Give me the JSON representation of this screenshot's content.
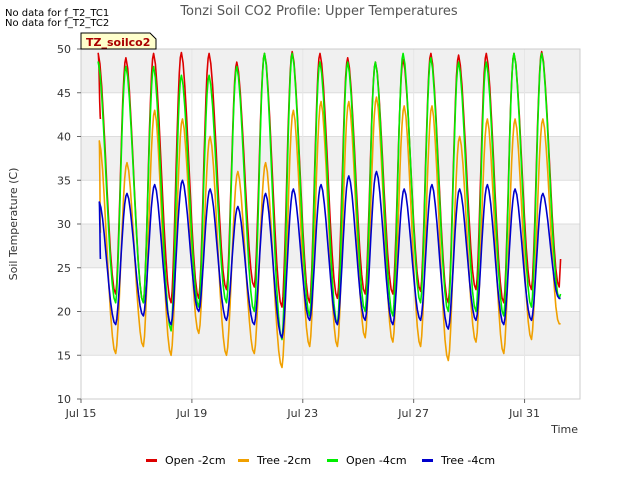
{
  "chart_data": {
    "type": "line",
    "title": "Tonzi Soil CO2 Profile: Upper Temperatures",
    "xlabel": "Time",
    "ylabel": "Soil Temperature (C)",
    "ylim": [
      10,
      50
    ],
    "yticks": [
      10,
      15,
      20,
      25,
      30,
      35,
      40,
      45,
      50
    ],
    "xlim": [
      15,
      33
    ],
    "xticks": [
      {
        "value": 15,
        "label": "Jul 15"
      },
      {
        "value": 19,
        "label": "Jul 19"
      },
      {
        "value": 23,
        "label": "Jul 23"
      },
      {
        "value": 27,
        "label": "Jul 27"
      },
      {
        "value": 31,
        "label": "Jul 31"
      }
    ],
    "grid": true,
    "tooltip_label": "TZ_soilco2",
    "no_data_notes": [
      "No data for f_T2_TC1",
      "No data for f_T2_TC2"
    ],
    "series": [
      {
        "name": "Open -2cm",
        "color": "#dd0000",
        "x_start": 15.7,
        "days": 17,
        "daily_max": [
          49.5,
          49.0,
          49.5,
          49.6,
          49.5,
          48.5,
          49.5,
          49.7,
          49.5,
          49.0,
          48.5,
          48.8,
          49.5,
          49.3,
          49.5,
          49.5,
          49.7
        ],
        "daily_min": [
          22.0,
          21.0,
          21.0,
          21.5,
          22.5,
          22.8,
          20.5,
          21.0,
          21.5,
          22.0,
          22.0,
          22.3,
          21.0,
          22.5,
          21.0,
          22.5,
          22.8
        ],
        "start_value": 42.0,
        "end_value": 26.0
      },
      {
        "name": "Tree -2cm",
        "color": "#f0a000",
        "x_start": 15.7,
        "days": 17,
        "daily_max": [
          39.5,
          37.0,
          43.0,
          42.0,
          40.0,
          36.0,
          37.0,
          43.0,
          44.0,
          44.0,
          44.5,
          43.5,
          43.5,
          40.0,
          42.0,
          42.0,
          42.0
        ],
        "daily_min": [
          15.2,
          16.0,
          15.0,
          17.5,
          15.0,
          15.2,
          13.6,
          16.0,
          16.0,
          17.0,
          16.5,
          16.0,
          14.4,
          16.5,
          15.2,
          16.8,
          18.6
        ],
        "start_value": 29.0,
        "end_value": 18.6
      },
      {
        "name": "Open -4cm",
        "color": "#00ee00",
        "x_start": 15.7,
        "days": 17,
        "daily_max": [
          48.5,
          48.0,
          48.0,
          47.0,
          47.0,
          48.0,
          49.5,
          49.5,
          48.5,
          48.5,
          48.5,
          49.5,
          49.0,
          48.5,
          48.5,
          49.5,
          49.5
        ],
        "daily_min": [
          21.0,
          21.0,
          17.8,
          20.5,
          21.0,
          20.0,
          16.8,
          19.5,
          18.5,
          20.0,
          19.5,
          21.0,
          20.0,
          20.0,
          19.5,
          20.5,
          21.5
        ],
        "start_value": 47.0,
        "end_value": 22.0
      },
      {
        "name": "Tree -4cm",
        "color": "#0000cc",
        "x_start": 15.7,
        "days": 17,
        "daily_max": [
          32.5,
          33.5,
          34.5,
          35.0,
          34.0,
          32.0,
          33.5,
          34.0,
          34.5,
          35.5,
          36.0,
          34.0,
          34.5,
          34.0,
          34.5,
          34.0,
          33.5
        ],
        "daily_min": [
          18.5,
          19.5,
          18.5,
          20.0,
          19.0,
          18.5,
          17.0,
          19.0,
          18.5,
          19.0,
          18.5,
          19.0,
          18.0,
          19.0,
          18.5,
          19.0,
          21.5
        ],
        "start_value": 26.0,
        "end_value": 21.5
      }
    ]
  }
}
